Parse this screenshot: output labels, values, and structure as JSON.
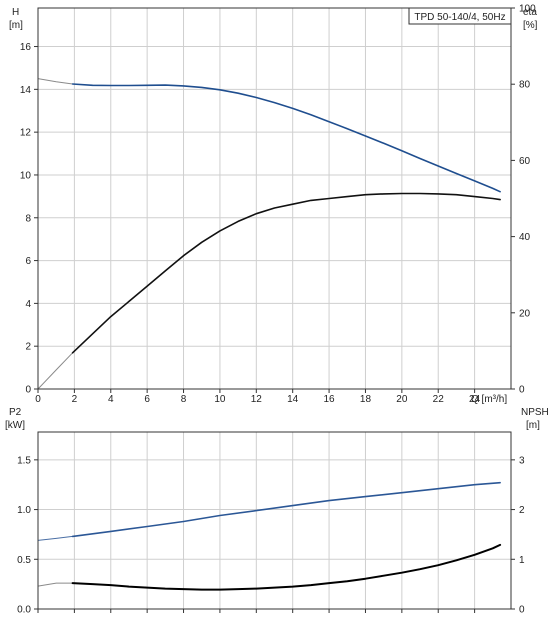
{
  "chart_data": [
    {
      "type": "line",
      "title": "TPD 50-140/4, 50Hz",
      "xlabel": "Q [m³/h]",
      "xlim": [
        0,
        26
      ],
      "x_ticks": [
        "0",
        "2",
        "4",
        "6",
        "8",
        "10",
        "12",
        "14",
        "16",
        "18",
        "20",
        "22",
        "24"
      ],
      "left_axis": {
        "label_line1": "H",
        "label_line2": "[m]",
        "ylim": [
          0,
          17.8
        ],
        "ticks": [
          "0",
          "2",
          "4",
          "6",
          "8",
          "10",
          "12",
          "14",
          "16"
        ]
      },
      "right_axis": {
        "label_line1": "eta",
        "label_line2": "[%]",
        "ylim": [
          0,
          100
        ],
        "ticks": [
          "0",
          "20",
          "40",
          "60",
          "80",
          "100"
        ]
      },
      "grid": true,
      "series": [
        {
          "axis": "left",
          "color": "#1f4e8f",
          "extension_color": "#8a8a8a",
          "x": [
            0,
            1,
            1.9,
            3,
            4,
            5,
            6,
            7,
            8,
            9,
            10,
            11,
            12,
            13,
            14,
            15,
            16,
            17,
            18,
            19,
            20,
            21,
            22,
            23,
            24,
            25,
            25.4
          ],
          "values": [
            14.5,
            14.35,
            14.25,
            14.19,
            14.18,
            14.18,
            14.19,
            14.2,
            14.16,
            14.09,
            13.98,
            13.82,
            13.62,
            13.38,
            13.11,
            12.81,
            12.49,
            12.16,
            11.82,
            11.48,
            11.13,
            10.77,
            10.42,
            10.07,
            9.72,
            9.37,
            9.22
          ],
          "extension_until_x": 1.9
        },
        {
          "axis": "right",
          "color": "#111111",
          "extension_color": "#8a8a8a",
          "x": [
            0,
            1,
            1.9,
            3,
            4,
            5,
            6,
            7,
            8,
            9,
            10,
            11,
            12,
            13,
            14,
            15,
            16,
            17,
            18,
            19,
            20,
            21,
            22,
            23,
            24,
            25,
            25.4
          ],
          "values": [
            0,
            5,
            9.5,
            14.5,
            19,
            23,
            27,
            31,
            35,
            38.5,
            41.5,
            44,
            46,
            47.5,
            48.5,
            49.5,
            50,
            50.5,
            51,
            51.2,
            51.3,
            51.3,
            51.2,
            51,
            50.5,
            50,
            49.7
          ],
          "extension_until_x": 1.9
        }
      ]
    },
    {
      "type": "line",
      "xlim": [
        0,
        26
      ],
      "left_axis": {
        "label_line1": "P2",
        "label_line2": "[kW]",
        "ylim": [
          0,
          1.78
        ],
        "ticks": [
          "0.0",
          "0.5",
          "1.0",
          "1.5"
        ]
      },
      "right_axis": {
        "label_line1": "NPSH",
        "label_line2": "[m]",
        "ylim": [
          0,
          3.56
        ],
        "ticks": [
          "0",
          "1",
          "2",
          "3"
        ]
      },
      "grid": true,
      "series": [
        {
          "axis": "left",
          "color": "#2b5796",
          "extension_color": "#4a6fa5",
          "x": [
            0,
            1,
            1.9,
            4,
            6,
            8,
            10,
            12,
            14,
            16,
            18,
            20,
            22,
            24,
            25.4
          ],
          "values": [
            0.69,
            0.71,
            0.73,
            0.78,
            0.83,
            0.88,
            0.94,
            0.99,
            1.04,
            1.09,
            1.13,
            1.17,
            1.21,
            1.25,
            1.27
          ],
          "extension_until_x": 1.9
        },
        {
          "axis": "right",
          "color": "#000000",
          "extension_color": "#8a8a8a",
          "stroke_width": 2,
          "x": [
            0,
            1,
            1.9,
            3,
            4,
            5,
            6,
            7,
            8,
            9,
            10,
            11,
            12,
            13,
            14,
            15,
            16,
            17,
            18,
            19,
            20,
            21,
            22,
            23,
            24,
            25,
            25.4
          ],
          "values": [
            0.46,
            0.52,
            0.52,
            0.5,
            0.48,
            0.45,
            0.43,
            0.41,
            0.4,
            0.39,
            0.39,
            0.4,
            0.41,
            0.43,
            0.45,
            0.48,
            0.52,
            0.56,
            0.61,
            0.67,
            0.73,
            0.8,
            0.88,
            0.98,
            1.09,
            1.22,
            1.29
          ],
          "extension_until_x": 1.9
        }
      ]
    }
  ]
}
